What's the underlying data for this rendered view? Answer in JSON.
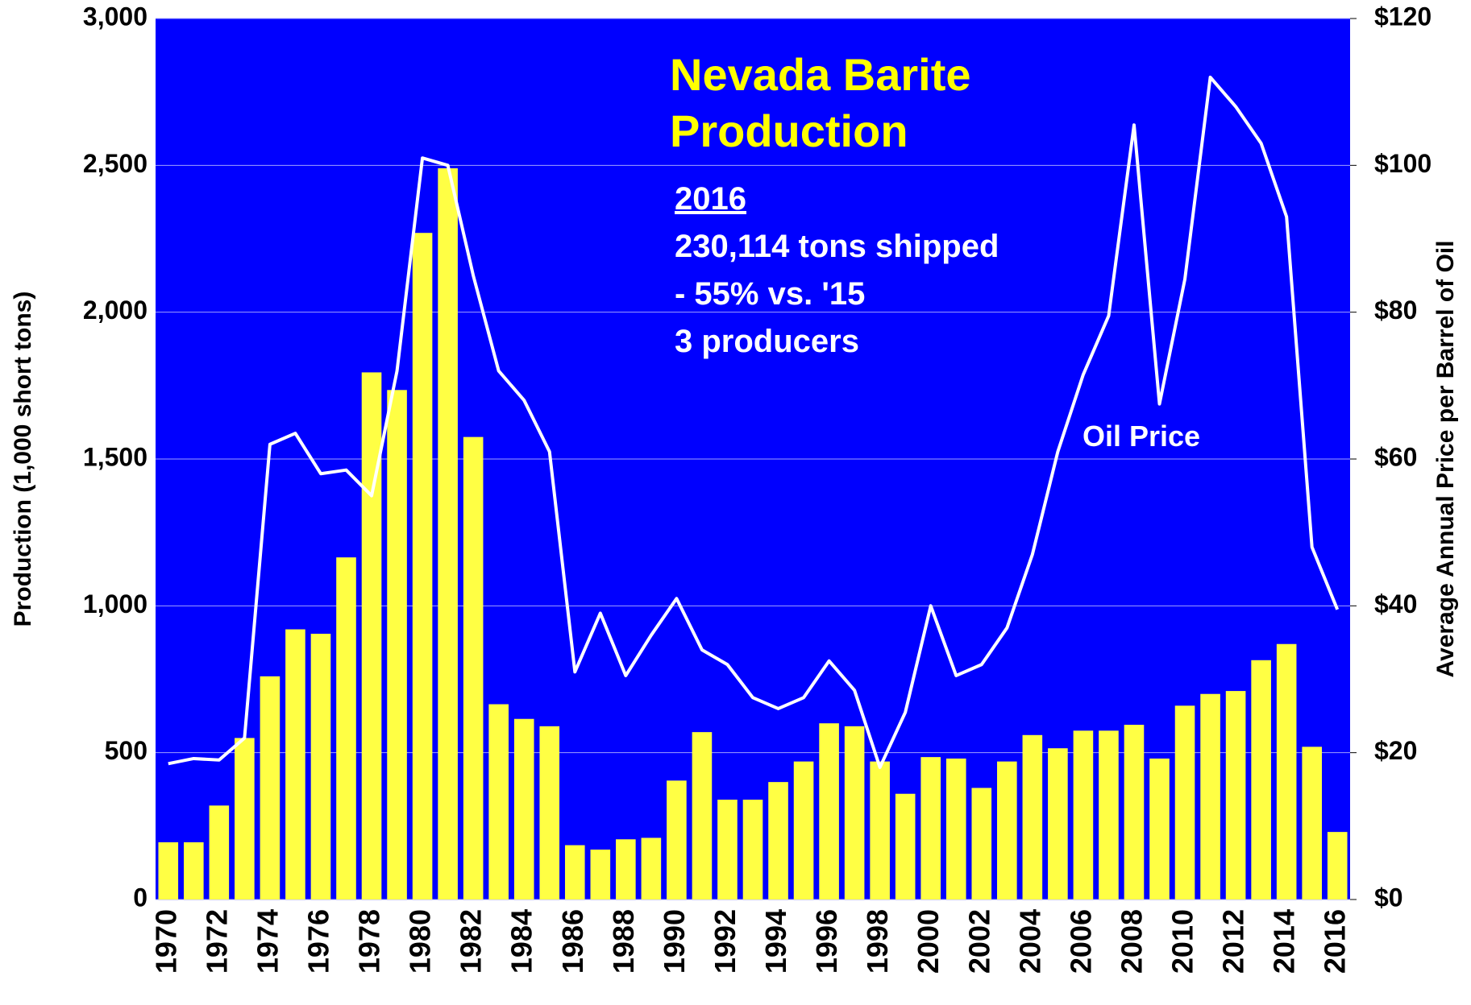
{
  "chart_data": {
    "type": "bar_line",
    "title": "Nevada Barite Production",
    "ylabel": "Production (1,000 short tons)",
    "y2label": "Average Annual Price per Barrel of Oil",
    "annotations": {
      "heading": "2016",
      "lines": [
        "230,114 tons shipped",
        "- 55% vs. '15",
        "3 producers"
      ],
      "line_label": "Oil Price"
    },
    "categories": [
      "1970",
      null,
      "1972",
      null,
      "1974",
      null,
      "1976",
      null,
      "1978",
      null,
      "1980",
      null,
      "1982",
      null,
      "1984",
      null,
      "1986",
      null,
      "1988",
      null,
      "1990",
      null,
      "1992",
      null,
      "1994",
      null,
      "1996",
      null,
      "1998",
      null,
      "2000",
      null,
      "2002",
      null,
      "2004",
      null,
      "2006",
      null,
      "2008",
      null,
      "2010",
      null,
      "2012",
      null,
      "2014",
      null,
      "2016"
    ],
    "series": [
      {
        "name": "Production",
        "type": "bar",
        "color": "#ffff44",
        "axis": "y",
        "values": [
          195,
          195,
          320,
          550,
          760,
          920,
          905,
          1165,
          1795,
          1735,
          2270,
          2490,
          1575,
          665,
          615,
          590,
          185,
          170,
          205,
          210,
          405,
          570,
          340,
          340,
          400,
          470,
          600,
          590,
          470,
          360,
          485,
          480,
          380,
          470,
          560,
          515,
          575,
          575,
          595,
          480,
          660,
          700,
          710,
          815,
          870,
          520,
          230
        ]
      },
      {
        "name": "Oil Price",
        "type": "line",
        "color": "#ffffff",
        "axis": "y2",
        "values": [
          18.5,
          19.2,
          19,
          22,
          62,
          63.5,
          58,
          58.5,
          55,
          72,
          101,
          100,
          85,
          72,
          68,
          61,
          31,
          39,
          30.5,
          36,
          41,
          34,
          32,
          27.5,
          26,
          27.5,
          32.5,
          28.5,
          18,
          25.5,
          40,
          30.5,
          32,
          37,
          47,
          61,
          71.5,
          79.5,
          105.5,
          67.5,
          84.5,
          112,
          108,
          103,
          93,
          48,
          39.5
        ]
      }
    ],
    "ylim": [
      0,
      3000
    ],
    "yticks": [
      0,
      500,
      {
        "value": 1000,
        "label": "1,000"
      },
      {
        "value": 1500,
        "label": "1,500"
      },
      {
        "value": 2000,
        "label": "2,000"
      },
      {
        "value": 2500,
        "label": "2,500"
      },
      {
        "value": 3000,
        "label": "3,000"
      }
    ],
    "y2lim": [
      0,
      120
    ],
    "y2ticks": [
      {
        "value": 0,
        "label": "$0"
      },
      {
        "value": 20,
        "label": "$20"
      },
      {
        "value": 40,
        "label": "$40"
      },
      {
        "value": 60,
        "label": "$60"
      },
      {
        "value": 80,
        "label": "$80"
      },
      {
        "value": 100,
        "label": "$100"
      },
      {
        "value": 120,
        "label": "$120"
      }
    ],
    "grid": true,
    "background": "#0000ff"
  }
}
